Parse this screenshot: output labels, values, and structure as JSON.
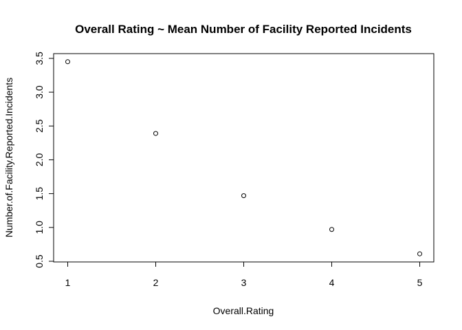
{
  "chart_data": {
    "type": "scatter",
    "title": "Overall Rating ~ Mean Number of Facility Reported Incidents",
    "xlabel": "Overall.Rating",
    "ylabel": "Number.of.Facility.Reported.Incidents",
    "x": [
      1,
      2,
      3,
      4,
      5
    ],
    "y": [
      3.45,
      2.39,
      1.47,
      0.97,
      0.61
    ],
    "xlim": [
      0.84,
      5.16
    ],
    "ylim": [
      0.49,
      3.57
    ],
    "x_ticks": [
      1,
      2,
      3,
      4,
      5
    ],
    "x_tick_labels": [
      "1",
      "2",
      "3",
      "4",
      "5"
    ],
    "y_ticks": [
      0.5,
      1.0,
      1.5,
      2.0,
      2.5,
      3.0,
      3.5
    ],
    "y_tick_labels": [
      "0.5",
      "1.0",
      "1.5",
      "2.0",
      "2.5",
      "3.0",
      "3.5"
    ],
    "grid": false,
    "legend": "none",
    "marker": "open-circle",
    "colors": {
      "background": "#ffffff",
      "foreground": "#000000"
    }
  }
}
